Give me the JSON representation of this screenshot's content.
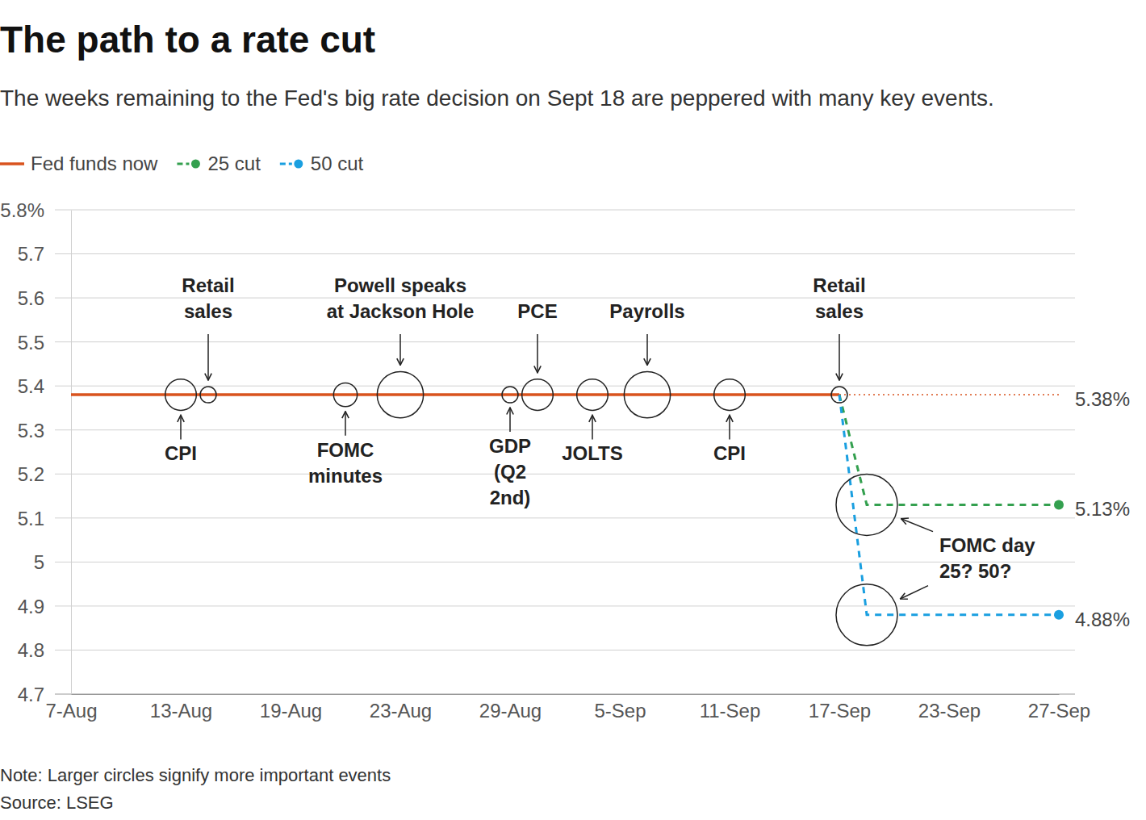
{
  "chart_data": {
    "type": "line",
    "title": "The path to a rate cut",
    "subtitle": "The weeks remaining to the Fed's big rate decision on Sept 18 are peppered with many key events.",
    "note": "Note: Larger circles signify more important events",
    "source": "Source: LSEG",
    "legend": "top-left",
    "grid": true,
    "data_labels": true,
    "xlim": [
      0,
      36
    ],
    "xticks": [
      {
        "value": 0,
        "label": "7-Aug"
      },
      {
        "value": 4,
        "label": "13-Aug"
      },
      {
        "value": 8,
        "label": "19-Aug"
      },
      {
        "value": 12,
        "label": "23-Aug"
      },
      {
        "value": 16,
        "label": "29-Aug"
      },
      {
        "value": 20,
        "label": "5-Sep"
      },
      {
        "value": 24,
        "label": "11-Sep"
      },
      {
        "value": 28,
        "label": "17-Sep"
      },
      {
        "value": 32,
        "label": "23-Sep"
      },
      {
        "value": 36,
        "label": "27-Sep"
      }
    ],
    "ylim": [
      4.7,
      5.8
    ],
    "yticks": [
      {
        "value": 5.8,
        "label": "5.8%"
      },
      5.7,
      5.6,
      5.5,
      5.4,
      5.3,
      5.2,
      5.1,
      5,
      4.9,
      4.8,
      4.7
    ],
    "series": [
      {
        "name": "Fed funds now",
        "color": "#d9531e",
        "line_style": "solid",
        "x": [
          0,
          28
        ],
        "values": [
          5.38,
          5.38
        ]
      },
      {
        "name": "25 cut",
        "color": "#34a04f",
        "line_style": "dashed",
        "marker": "circle",
        "x": [
          28,
          29,
          36
        ],
        "values": [
          5.38,
          5.13,
          5.13
        ],
        "value_labels": [
          null,
          null,
          "5.13%"
        ]
      },
      {
        "name": "50 cut",
        "color": "#1a9fe0",
        "line_style": "dashed",
        "marker": "circle",
        "x": [
          28,
          29,
          36
        ],
        "values": [
          5.38,
          4.88,
          4.88
        ],
        "value_labels": [
          null,
          null,
          "4.88%"
        ]
      }
    ],
    "reference_line": {
      "value": 5.38,
      "x": [
        28,
        36
      ],
      "label": "5.38%",
      "color": "#d9531e",
      "line_style": "dotted"
    },
    "events": [
      {
        "label": [
          "CPI"
        ],
        "x": 4,
        "y": [
          5.38
        ],
        "size": 2,
        "position": "below"
      },
      {
        "label": [
          "Retail",
          "sales"
        ],
        "x": 5,
        "y": [
          5.38
        ],
        "size": 1,
        "position": "above"
      },
      {
        "label": [
          "FOMC",
          "minutes"
        ],
        "x": 10,
        "y": [
          5.38
        ],
        "size": 1.5,
        "position": "below"
      },
      {
        "label": [
          "Powell speaks",
          "at Jackson Hole"
        ],
        "x": 12,
        "y": [
          5.38
        ],
        "size": 3,
        "position": "above"
      },
      {
        "label": [
          "GDP",
          "(Q2",
          "2nd)"
        ],
        "x": 16,
        "y": [
          5.38
        ],
        "size": 1,
        "position": "below"
      },
      {
        "label": [
          "PCE"
        ],
        "x": 17,
        "y": [
          5.38
        ],
        "size": 2,
        "position": "above"
      },
      {
        "label": [
          "JOLTS"
        ],
        "x": 19,
        "y": [
          5.38
        ],
        "size": 2,
        "position": "below"
      },
      {
        "label": [
          "Payrolls"
        ],
        "x": 21,
        "y": [
          5.38
        ],
        "size": 3,
        "position": "above"
      },
      {
        "label": [
          "CPI"
        ],
        "x": 24,
        "y": [
          5.38
        ],
        "size": 2,
        "position": "below"
      },
      {
        "label": [
          "Retail",
          "sales"
        ],
        "x": 28,
        "y": [
          5.38
        ],
        "size": 1,
        "position": "above"
      },
      {
        "label": [
          "FOMC day",
          "25? 50?"
        ],
        "x": 29,
        "y": [
          5.13,
          4.88
        ],
        "size": 4,
        "position": "right"
      }
    ]
  }
}
